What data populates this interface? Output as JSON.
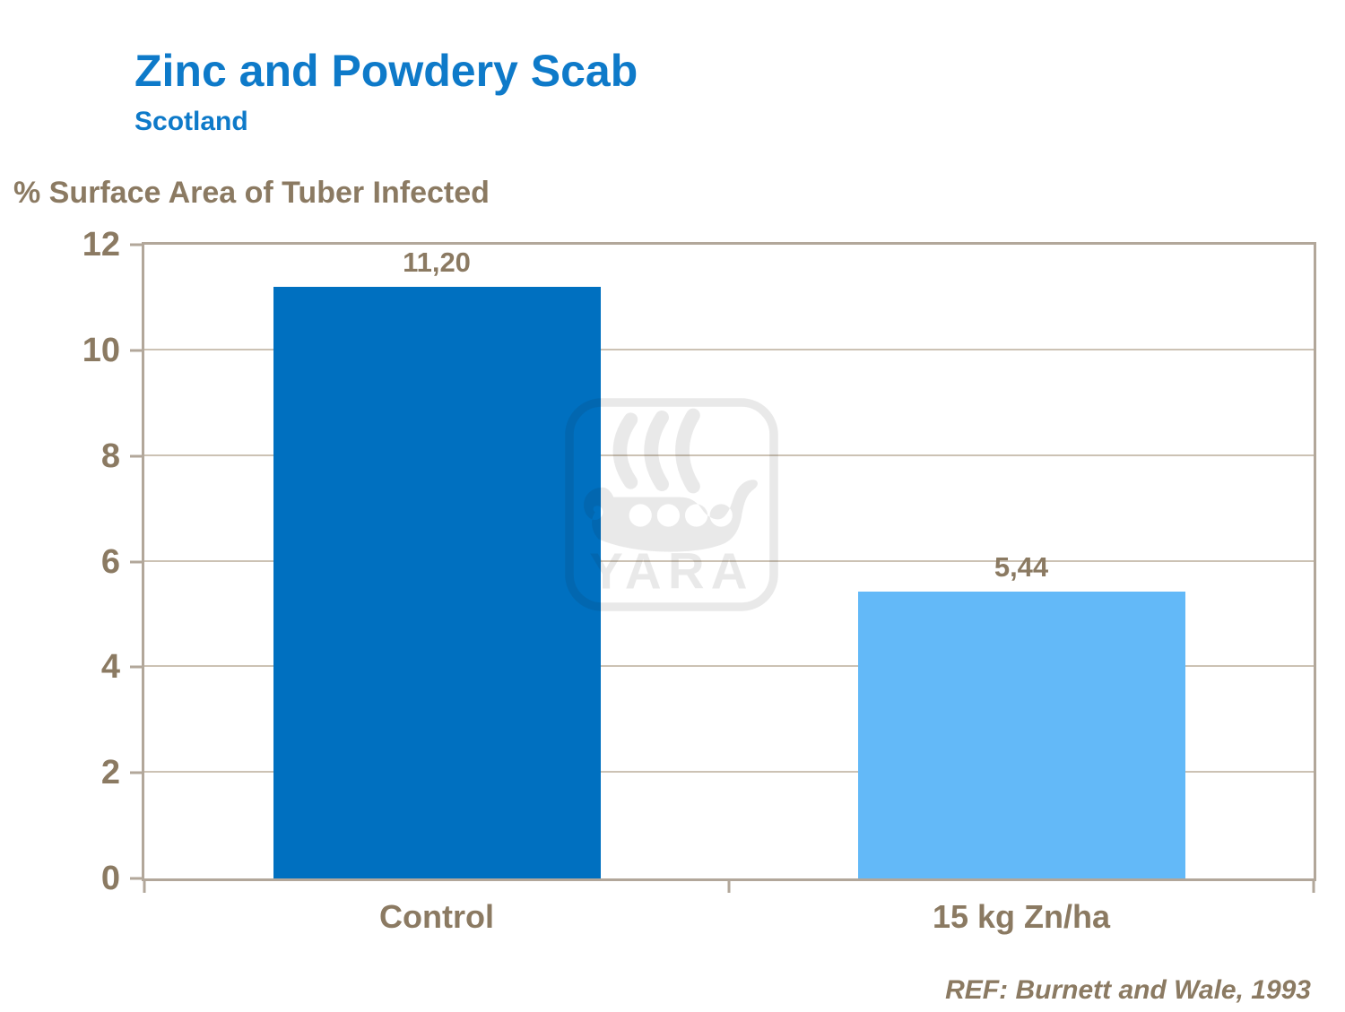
{
  "chart_data": {
    "type": "bar",
    "title": "Zinc and Powdery Scab",
    "subtitle": "Scotland",
    "ylabel": "% Surface Area of Tuber Infected",
    "xlabel": "",
    "categories": [
      "Control",
      "15 kg Zn/ha"
    ],
    "values": [
      11.2,
      5.44
    ],
    "value_labels": [
      "11,20",
      "5,44"
    ],
    "ylim": [
      0,
      12
    ],
    "yticks": [
      0,
      2,
      4,
      6,
      8,
      10,
      12
    ],
    "grid": true,
    "legend": false,
    "bar_colors": [
      "#0070c0",
      "#63b9f8"
    ],
    "reference": "REF: Burnett and Wale, 1993",
    "watermark_text": "YARA"
  },
  "colors": {
    "title_blue": "#0e7ac9",
    "bar_dark_blue": "#0070c0",
    "bar_light_blue": "#63b9f8",
    "text_brown": "#8b7a62",
    "plot_border": "#b2a79a",
    "gridline": "#ccc2b4",
    "watermark_gray": "#e9e9e9"
  }
}
